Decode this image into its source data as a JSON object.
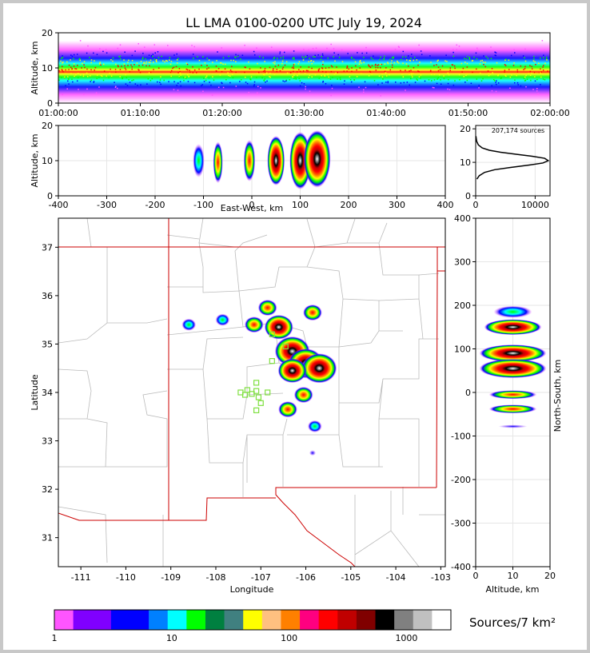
{
  "title": "LL LMA 0100-0200 UTC July 19, 2024",
  "colors": {
    "frame": "#c8c8c8",
    "state_border": "#cc0000",
    "county_border": "#bbbbbb",
    "marker": "#7fe040"
  },
  "chart_data": [
    {
      "id": "time_height",
      "type": "heatmap",
      "ylabel": "Altitude, km",
      "ylim": [
        0,
        20
      ],
      "yticks": [
        "0",
        "10",
        "20"
      ],
      "xticks": [
        "01:00:00",
        "01:10:00",
        "01:20:00",
        "01:30:00",
        "01:40:00",
        "01:50:00",
        "02:00:00"
      ],
      "xlim": [
        "01:00:00",
        "02:00:00"
      ],
      "core_altitude_km": 10,
      "band_altitude_km": [
        2,
        20
      ]
    },
    {
      "id": "ew_altitude",
      "type": "heatmap",
      "xlabel": "East-West, km",
      "ylabel": "Altitude, km",
      "xlim": [
        -400,
        400
      ],
      "ylim": [
        0,
        20
      ],
      "xticks": [
        "-400",
        "-300",
        "-200",
        "-100",
        "0",
        "100",
        "200",
        "300",
        "400"
      ],
      "yticks": [
        "0",
        "10",
        "20"
      ],
      "clusters_km": [
        {
          "x": -110,
          "z": 10,
          "w": 12,
          "level": 1
        },
        {
          "x": -70,
          "z": 9.5,
          "w": 10,
          "level": 2
        },
        {
          "x": -5,
          "z": 10,
          "w": 12,
          "level": 2
        },
        {
          "x": 50,
          "z": 10,
          "w": 18,
          "level": 3
        },
        {
          "x": 100,
          "z": 10,
          "w": 22,
          "level": 4
        },
        {
          "x": 135,
          "z": 10.5,
          "w": 28,
          "level": 4
        }
      ]
    },
    {
      "id": "altitude_histogram",
      "type": "line",
      "annotation": "207,174 sources",
      "xlim": [
        0,
        12500
      ],
      "ylim": [
        0,
        21
      ],
      "xticks": [
        "0",
        "10000"
      ],
      "yticks": [
        "0",
        "10",
        "20"
      ],
      "x": [
        200,
        600,
        1500,
        3200,
        6000,
        9000,
        11300,
        12200,
        11600,
        9500,
        6800,
        4200,
        2300,
        1100,
        450,
        160,
        40
      ],
      "y": [
        5,
        6,
        7,
        7.8,
        8.5,
        9.2,
        9.8,
        10.5,
        11.2,
        11.8,
        12.4,
        13,
        13.6,
        14.3,
        15.2,
        16.3,
        17.8
      ]
    },
    {
      "id": "plan_view",
      "type": "heatmap",
      "xlabel": "Longitude",
      "ylabel": "Latitude",
      "xlim": [
        -111.5,
        -102.9
      ],
      "ylim": [
        30.4,
        37.6
      ],
      "xticks": [
        "-111",
        "-110",
        "-109",
        "-108",
        "-107",
        "-106",
        "-105",
        "-104",
        "-103"
      ],
      "yticks": [
        "31",
        "32",
        "33",
        "34",
        "35",
        "36",
        "37"
      ],
      "cells": [
        {
          "lon": -106.3,
          "lat": 34.85,
          "level": 4
        },
        {
          "lon": -106.0,
          "lat": 34.6,
          "level": 4
        },
        {
          "lon": -105.7,
          "lat": 34.5,
          "level": 4
        },
        {
          "lon": -106.3,
          "lat": 34.45,
          "level": 3
        },
        {
          "lon": -106.6,
          "lat": 35.35,
          "level": 3
        },
        {
          "lon": -106.85,
          "lat": 35.75,
          "level": 2
        },
        {
          "lon": -107.15,
          "lat": 35.4,
          "level": 2
        },
        {
          "lon": -105.85,
          "lat": 35.65,
          "level": 2
        },
        {
          "lon": -107.85,
          "lat": 35.5,
          "level": 1
        },
        {
          "lon": -108.6,
          "lat": 35.4,
          "level": 1
        },
        {
          "lon": -106.05,
          "lat": 33.95,
          "level": 2
        },
        {
          "lon": -106.4,
          "lat": 33.65,
          "level": 2
        },
        {
          "lon": -105.8,
          "lat": 33.3,
          "level": 1
        },
        {
          "lon": -105.85,
          "lat": 32.75,
          "level": 0
        }
      ],
      "stations": [
        {
          "lon": -106.75,
          "lat": 35.2
        },
        {
          "lon": -106.45,
          "lat": 34.95
        },
        {
          "lon": -106.75,
          "lat": 34.65
        },
        {
          "lon": -107.1,
          "lat": 34.2
        },
        {
          "lon": -107.3,
          "lat": 34.05
        },
        {
          "lon": -107.35,
          "lat": 33.95
        },
        {
          "lon": -107.2,
          "lat": 33.97
        },
        {
          "lon": -107.05,
          "lat": 33.9
        },
        {
          "lon": -106.85,
          "lat": 34.0
        },
        {
          "lon": -107.0,
          "lat": 33.78
        },
        {
          "lon": -107.1,
          "lat": 33.63
        },
        {
          "lon": -107.45,
          "lat": 34.0
        },
        {
          "lon": -107.1,
          "lat": 34.03
        }
      ]
    },
    {
      "id": "ns_altitude",
      "type": "heatmap",
      "xlabel": "Altitude, km",
      "ylabel": "North-South, km",
      "xlim": [
        0,
        20
      ],
      "ylim": [
        -400,
        400
      ],
      "xticks": [
        "0",
        "10",
        "20"
      ],
      "yticks": [
        "-400",
        "-300",
        "-200",
        "-100",
        "0",
        "100",
        "200",
        "300",
        "400"
      ],
      "clusters_km": [
        {
          "y": 150,
          "h": 18,
          "level": 3
        },
        {
          "y": 185,
          "h": 14,
          "level": 1
        },
        {
          "y": 90,
          "h": 20,
          "level": 4
        },
        {
          "y": 55,
          "h": 22,
          "level": 4
        },
        {
          "y": -5,
          "h": 10,
          "level": 2
        },
        {
          "y": -38,
          "h": 10,
          "level": 2
        },
        {
          "y": -78,
          "h": 3,
          "level": 0
        }
      ]
    }
  ],
  "colorbar": {
    "label": "Sources/7 km²",
    "ticks": [
      "1",
      "10",
      "100",
      "1000"
    ],
    "colors": [
      "#ff55ff",
      "#8000ff",
      "#8000ff",
      "#0000ff",
      "#0000ff",
      "#0080ff",
      "#00ffff",
      "#00ff00",
      "#008040",
      "#408080",
      "#ffff00",
      "#ffc080",
      "#ff8000",
      "#ff0080",
      "#ff0000",
      "#c00000",
      "#800000",
      "#000000",
      "#808080",
      "#c0c0c0",
      "#ffffff"
    ]
  }
}
